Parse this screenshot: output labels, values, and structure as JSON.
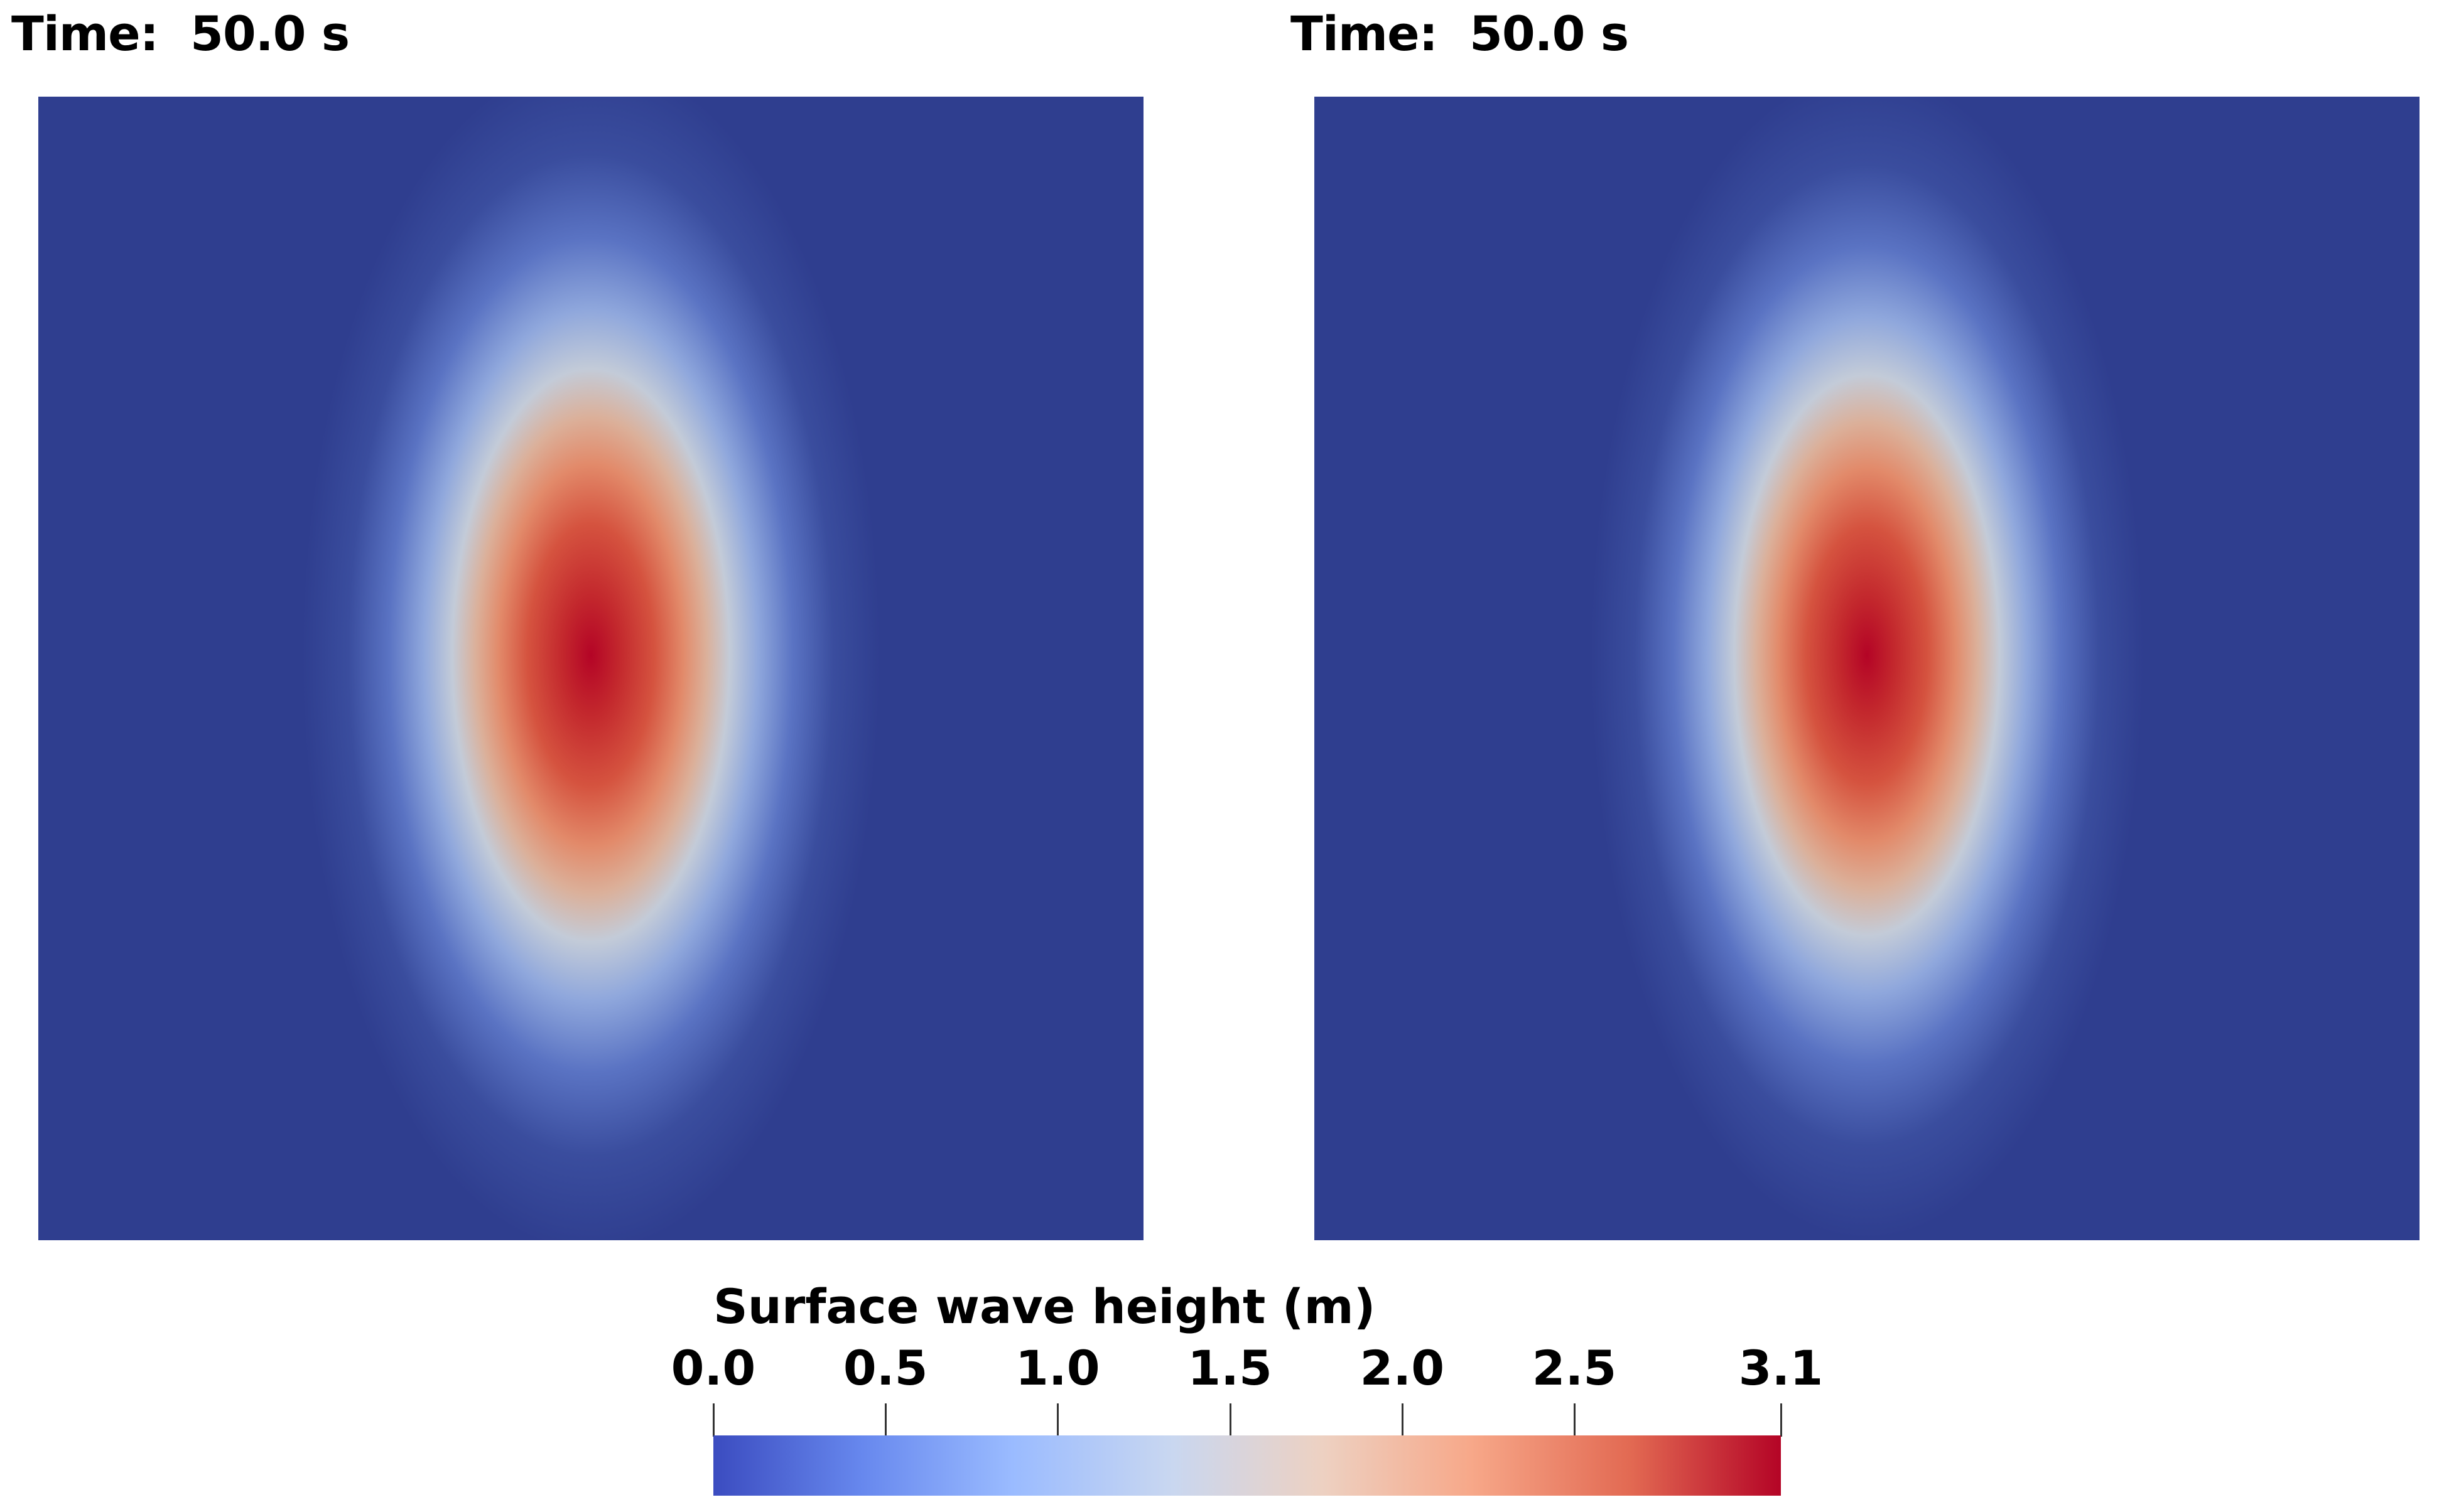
{
  "panels": [
    {
      "id": "left",
      "time_label": "Time:  50.0 s"
    },
    {
      "id": "right",
      "time_label": "Time:  50.0 s"
    }
  ],
  "colors": {
    "background_field": "#2f3e8f",
    "peak": "#b40426",
    "colormap": [
      "#3b4cc0",
      "#6788ee",
      "#9abbff",
      "#c9d7f0",
      "#edd1c2",
      "#f7a889",
      "#e26952",
      "#b40426"
    ]
  },
  "legend": {
    "title": "Surface wave height (m)",
    "min": 0.0,
    "max": 3.1,
    "ticks": [
      {
        "value": 0.0,
        "label": "0.0"
      },
      {
        "value": 0.5,
        "label": "0.5"
      },
      {
        "value": 1.0,
        "label": "1.0"
      },
      {
        "value": 1.5,
        "label": "1.5"
      },
      {
        "value": 2.0,
        "label": "2.0"
      },
      {
        "value": 2.5,
        "label": "2.5"
      },
      {
        "value": 3.1,
        "label": "3.1"
      }
    ]
  }
}
